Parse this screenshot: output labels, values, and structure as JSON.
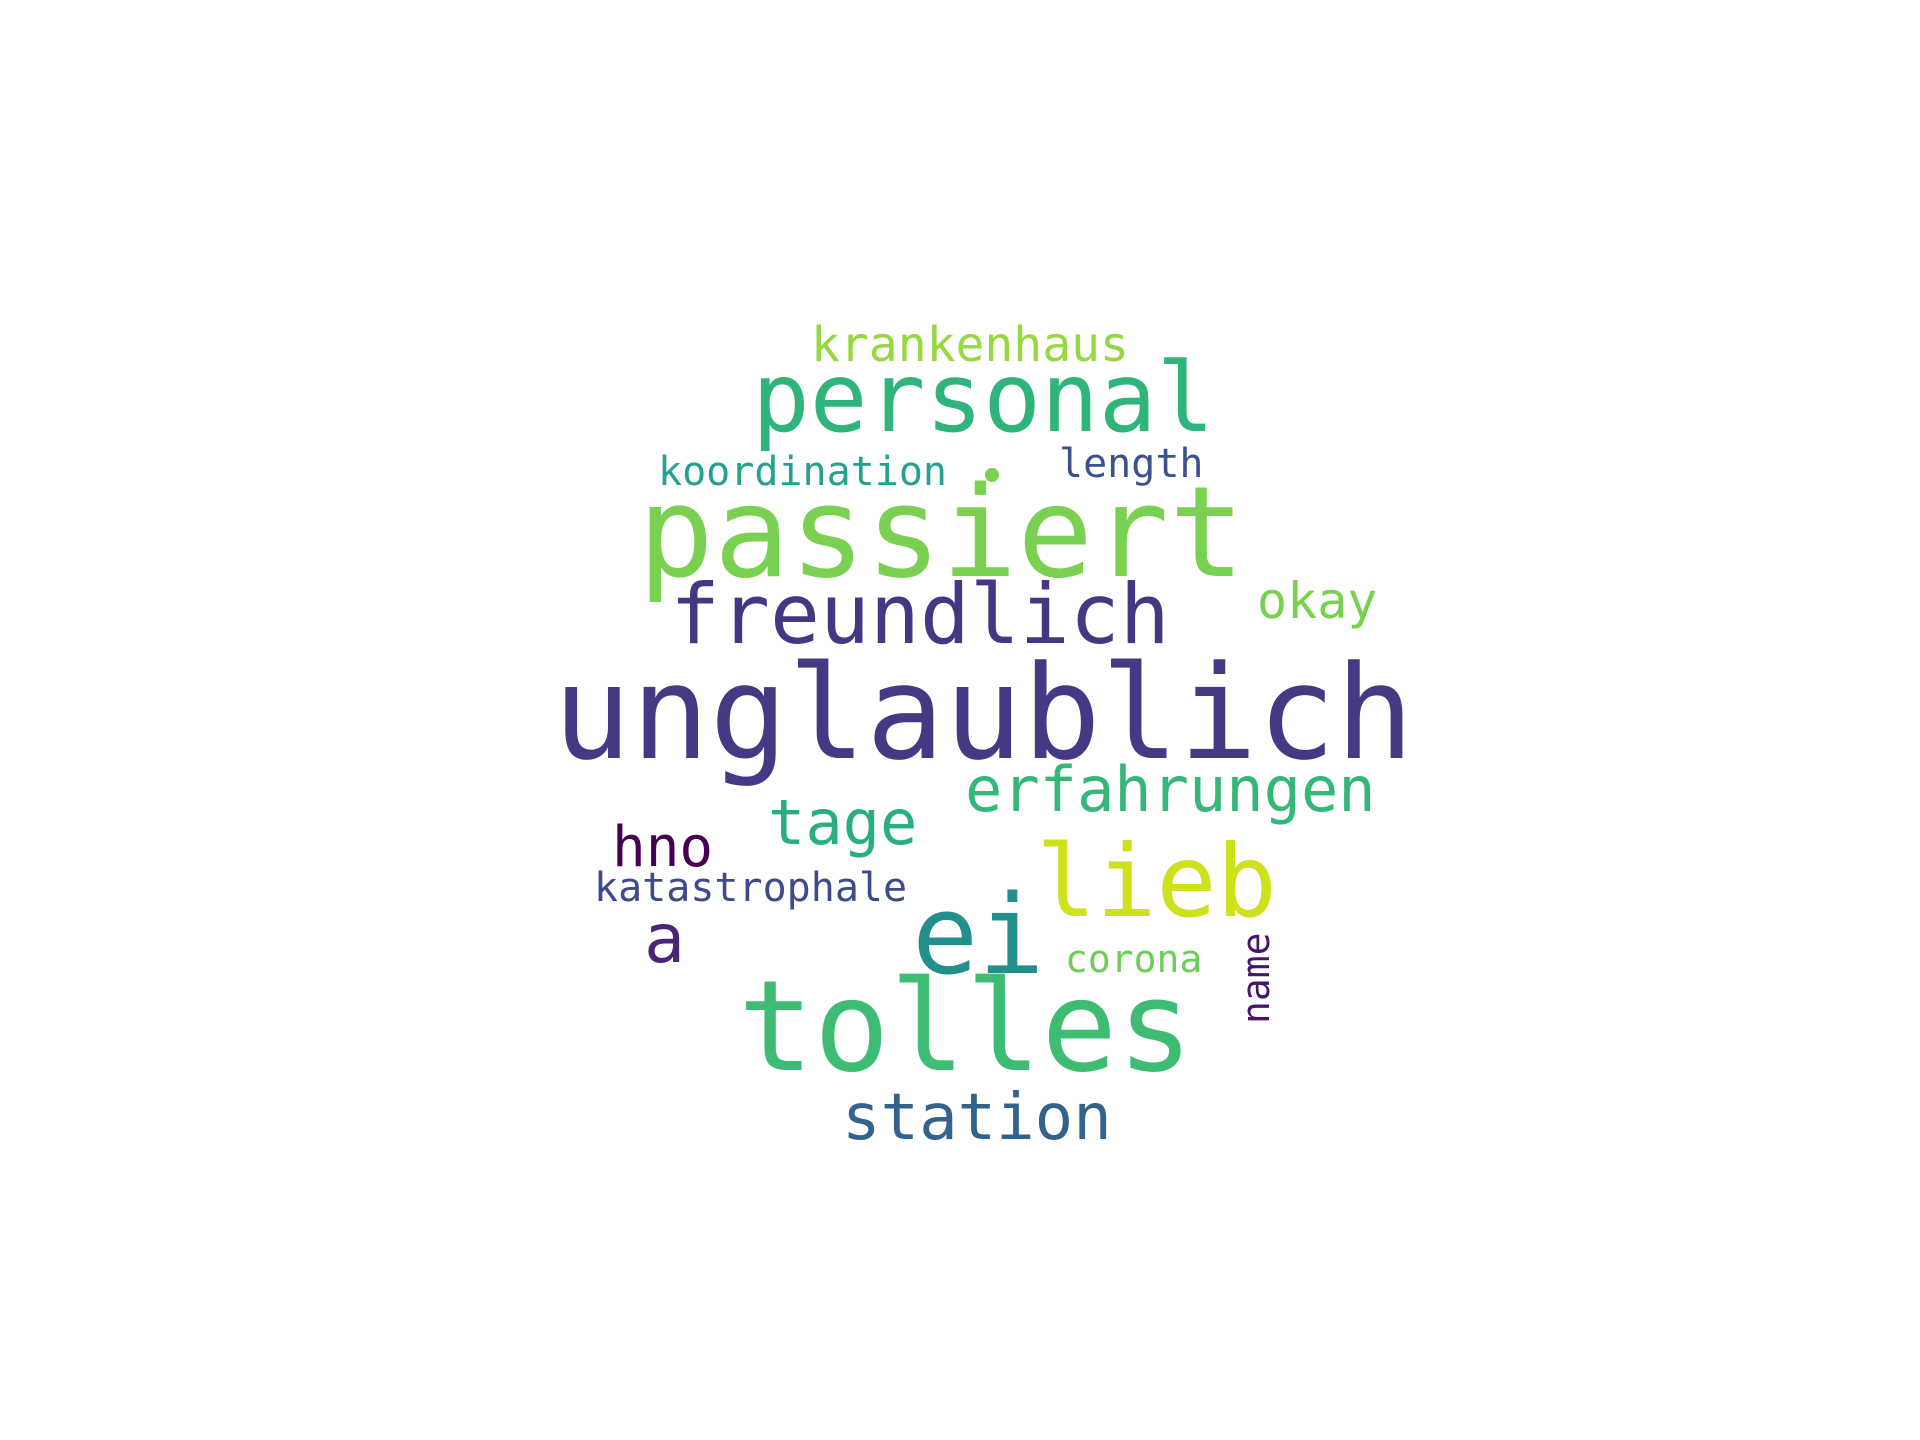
{
  "words": {
    "unglaublich": {
      "text": "unglaublich",
      "color": "#443a83"
    },
    "passiert": {
      "text": "passiert",
      "color": "#7ad151"
    },
    "tolles": {
      "text": "tolles",
      "color": "#3fbc73"
    },
    "personal": {
      "text": "personal",
      "color": "#2fb47c"
    },
    "freundlich": {
      "text": "freundlich",
      "color": "#453781"
    },
    "lieb": {
      "text": "lieb",
      "color": "#cde11d"
    },
    "ei": {
      "text": "ei",
      "color": "#21908d"
    },
    "erfahrungen": {
      "text": "erfahrungen",
      "color": "#35b779"
    },
    "station": {
      "text": "station",
      "color": "#33638d"
    },
    "tage": {
      "text": "tage",
      "color": "#29af7f"
    },
    "krankenhaus": {
      "text": "krankenhaus",
      "color": "#95d840"
    },
    "a": {
      "text": "a",
      "color": "#482576"
    },
    "hno": {
      "text": "hno",
      "color": "#440154"
    },
    "okay": {
      "text": "okay",
      "color": "#7ad151"
    },
    "koordination": {
      "text": "koordination",
      "color": "#25a18e"
    },
    "length": {
      "text": "length",
      "color": "#3b528b"
    },
    "katastrophale": {
      "text": "katastrophale",
      "color": "#3e4a89"
    },
    "corona": {
      "text": "corona",
      "color": "#6ccd5a"
    },
    "name": {
      "text": "name",
      "color": "#481668"
    }
  },
  "dot_color": "#7ad151"
}
